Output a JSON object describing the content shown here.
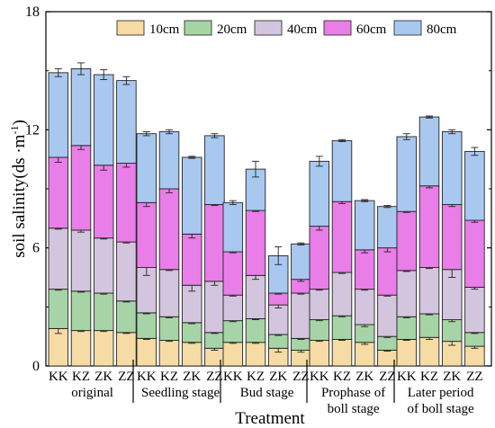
{
  "chart_data": {
    "type": "bar",
    "stacked": true,
    "xlabel": "Treatment",
    "ylabel": "soil salinity(ds ·m",
    "ylabel_superscript": "-1",
    "ylabel_close": ")",
    "ylim": [
      0,
      18
    ],
    "yticks": [
      0,
      6,
      12,
      18
    ],
    "legend_position": "top-center",
    "groups": [
      {
        "label": "original",
        "categories": [
          "KK",
          "KZ",
          "ZK",
          "ZZ"
        ]
      },
      {
        "label": "Seedling stage",
        "categories": [
          "KK",
          "KZ",
          "ZK",
          "ZZ"
        ]
      },
      {
        "label": "Bud stage",
        "categories": [
          "KK",
          "KZ",
          "ZK",
          "ZZ"
        ]
      },
      {
        "label": "Prophase of|boll stage",
        "categories": [
          "KK",
          "KZ",
          "ZK",
          "ZZ"
        ]
      },
      {
        "label": "Later period|of boll stage",
        "categories": [
          "KK",
          "KZ",
          "ZK",
          "ZZ"
        ]
      }
    ],
    "series": [
      {
        "name": "10cm",
        "color": "#F6DBA4",
        "values": [
          1.9,
          1.8,
          1.8,
          1.7,
          1.4,
          1.3,
          1.2,
          0.9,
          1.2,
          1.2,
          0.9,
          0.8,
          1.3,
          1.35,
          1.2,
          0.8,
          1.35,
          1.45,
          1.25,
          1.0
        ],
        "errors": [
          0.25,
          0.05,
          0.05,
          0.05,
          0.05,
          0.05,
          0.05,
          0.1,
          0.05,
          0.05,
          0.2,
          0.1,
          0.05,
          0.05,
          0.1,
          0.05,
          0.05,
          0.1,
          0.2,
          0.1
        ]
      },
      {
        "name": "20cm",
        "color": "#A6D4A6",
        "values": [
          2.0,
          2.0,
          1.9,
          1.6,
          1.3,
          1.2,
          1.0,
          0.8,
          1.1,
          1.2,
          0.7,
          0.6,
          1.05,
          1.2,
          0.9,
          0.7,
          1.15,
          1.2,
          1.1,
          0.7
        ],
        "errors": [
          0.05,
          0.05,
          0.05,
          0.05,
          0.05,
          0.05,
          0.05,
          0.05,
          0.05,
          0.05,
          0.05,
          0.05,
          0.05,
          0.05,
          0.1,
          0.05,
          0.05,
          0.05,
          0.1,
          0.05
        ]
      },
      {
        "name": "40cm",
        "color": "#D4C5DE",
        "values": [
          3.1,
          3.1,
          2.8,
          3.0,
          2.3,
          2.4,
          1.9,
          2.6,
          1.3,
          2.2,
          1.5,
          2.3,
          1.55,
          2.2,
          1.8,
          2.1,
          2.35,
          2.35,
          2.55,
          2.3
        ],
        "errors": [
          0.05,
          0.1,
          0.05,
          0.05,
          0.4,
          0.05,
          0.3,
          0.2,
          0.05,
          0.2,
          0.15,
          0.05,
          0.05,
          0.05,
          0.05,
          0.05,
          0.05,
          0.05,
          0.4,
          0.1
        ]
      },
      {
        "name": "60cm",
        "color": "#E97EE9",
        "values": [
          3.6,
          4.3,
          3.7,
          4.0,
          3.3,
          4.1,
          2.6,
          3.9,
          2.2,
          3.3,
          0.6,
          0.7,
          3.2,
          3.6,
          2.0,
          2.4,
          3.0,
          4.15,
          3.3,
          3.4
        ],
        "errors": [
          0.25,
          0.2,
          0.25,
          0.2,
          0.2,
          0.2,
          0.2,
          0.05,
          0.05,
          0.05,
          0.05,
          0.1,
          0.2,
          0.1,
          0.15,
          0.2,
          0.05,
          0.1,
          0.1,
          0.1
        ]
      },
      {
        "name": "80cm",
        "color": "#A9C8F0",
        "values": [
          4.3,
          3.9,
          4.6,
          4.2,
          3.5,
          2.9,
          3.9,
          3.5,
          2.5,
          2.1,
          1.9,
          1.8,
          3.3,
          3.1,
          2.5,
          2.1,
          3.8,
          3.5,
          3.7,
          3.5
        ],
        "errors": [
          0.2,
          0.3,
          0.25,
          0.2,
          0.1,
          0.1,
          0.05,
          0.1,
          0.1,
          0.4,
          0.45,
          0.05,
          0.25,
          0.05,
          0.05,
          0.05,
          0.15,
          0.05,
          0.1,
          0.2
        ]
      }
    ]
  }
}
